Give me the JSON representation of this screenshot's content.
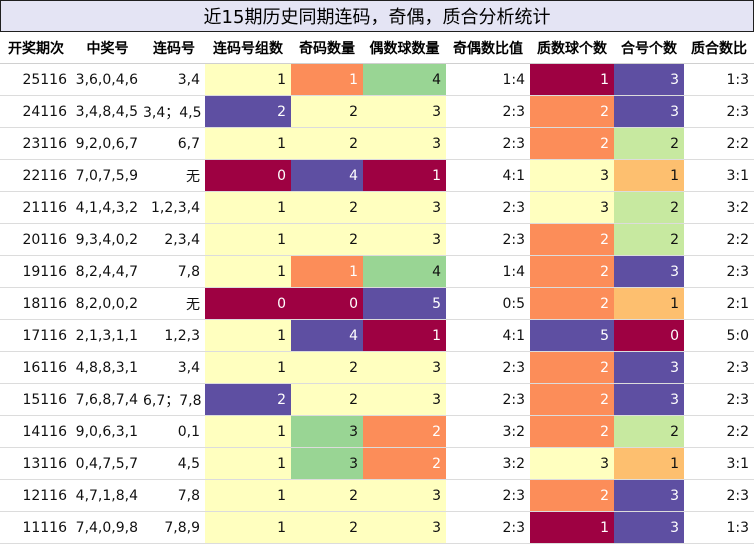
{
  "title": "近15期历史同期连码，奇偶，质合分析统计",
  "columns": [
    "开奖期次",
    "中奖号",
    "连码号",
    "连码号组数",
    "奇码数量",
    "偶数球数量",
    "奇偶数比值",
    "质数球个数",
    "合号个数",
    "质合数比"
  ],
  "colors": {
    "yellow": "#ffffbf",
    "orange": "#fc8d59",
    "green": "#99d594",
    "light_green": "#c7e9a0",
    "light_orange": "#fdbf6f",
    "purple": "#5e4fa2",
    "crimson": "#9e0142"
  },
  "rows": [
    {
      "period": "25116",
      "numbers": "3,6,0,4,6",
      "consec": "3,4",
      "groups": "1",
      "odd": "1",
      "even": "4",
      "ratio": "1:4",
      "prime": "1",
      "composite": "3",
      "pc_ratio": "1:3"
    },
    {
      "period": "24116",
      "numbers": "3,4,8,4,5",
      "consec": "3,4；4,5",
      "groups": "2",
      "odd": "2",
      "even": "3",
      "ratio": "2:3",
      "prime": "2",
      "composite": "3",
      "pc_ratio": "2:3"
    },
    {
      "period": "23116",
      "numbers": "9,2,0,6,7",
      "consec": "6,7",
      "groups": "1",
      "odd": "2",
      "even": "3",
      "ratio": "2:3",
      "prime": "2",
      "composite": "2",
      "pc_ratio": "2:2"
    },
    {
      "period": "22116",
      "numbers": "7,0,7,5,9",
      "consec": "无",
      "groups": "0",
      "odd": "4",
      "even": "1",
      "ratio": "4:1",
      "prime": "3",
      "composite": "1",
      "pc_ratio": "3:1"
    },
    {
      "period": "21116",
      "numbers": "4,1,4,3,2",
      "consec": "1,2,3,4",
      "groups": "1",
      "odd": "2",
      "even": "3",
      "ratio": "2:3",
      "prime": "3",
      "composite": "2",
      "pc_ratio": "3:2"
    },
    {
      "period": "20116",
      "numbers": "9,3,4,0,2",
      "consec": "2,3,4",
      "groups": "1",
      "odd": "2",
      "even": "3",
      "ratio": "2:3",
      "prime": "2",
      "composite": "2",
      "pc_ratio": "2:2"
    },
    {
      "period": "19116",
      "numbers": "8,2,4,4,7",
      "consec": "7,8",
      "groups": "1",
      "odd": "1",
      "even": "4",
      "ratio": "1:4",
      "prime": "2",
      "composite": "3",
      "pc_ratio": "2:3"
    },
    {
      "period": "18116",
      "numbers": "8,2,0,0,2",
      "consec": "无",
      "groups": "0",
      "odd": "0",
      "even": "5",
      "ratio": "0:5",
      "prime": "2",
      "composite": "1",
      "pc_ratio": "2:1"
    },
    {
      "period": "17116",
      "numbers": "2,1,3,1,1",
      "consec": "1,2,3",
      "groups": "1",
      "odd": "4",
      "even": "1",
      "ratio": "4:1",
      "prime": "5",
      "composite": "0",
      "pc_ratio": "5:0"
    },
    {
      "period": "16116",
      "numbers": "4,8,8,3,1",
      "consec": "3,4",
      "groups": "1",
      "odd": "2",
      "even": "3",
      "ratio": "2:3",
      "prime": "2",
      "composite": "3",
      "pc_ratio": "2:3"
    },
    {
      "period": "15116",
      "numbers": "7,6,8,7,4",
      "consec": "6,7；7,8",
      "groups": "2",
      "odd": "2",
      "even": "3",
      "ratio": "2:3",
      "prime": "2",
      "composite": "3",
      "pc_ratio": "2:3"
    },
    {
      "period": "14116",
      "numbers": "9,0,6,3,1",
      "consec": "0,1",
      "groups": "1",
      "odd": "3",
      "even": "2",
      "ratio": "3:2",
      "prime": "2",
      "composite": "2",
      "pc_ratio": "2:2"
    },
    {
      "period": "13116",
      "numbers": "0,4,7,5,7",
      "consec": "4,5",
      "groups": "1",
      "odd": "3",
      "even": "2",
      "ratio": "3:2",
      "prime": "3",
      "composite": "1",
      "pc_ratio": "3:1"
    },
    {
      "period": "12116",
      "numbers": "4,7,1,8,4",
      "consec": "7,8",
      "groups": "1",
      "odd": "2",
      "even": "3",
      "ratio": "2:3",
      "prime": "2",
      "composite": "3",
      "pc_ratio": "2:3"
    },
    {
      "period": "11116",
      "numbers": "7,4,0,9,8",
      "consec": "7,8,9",
      "groups": "1",
      "odd": "2",
      "even": "3",
      "ratio": "2:3",
      "prime": "1",
      "composite": "3",
      "pc_ratio": "1:3"
    }
  ]
}
